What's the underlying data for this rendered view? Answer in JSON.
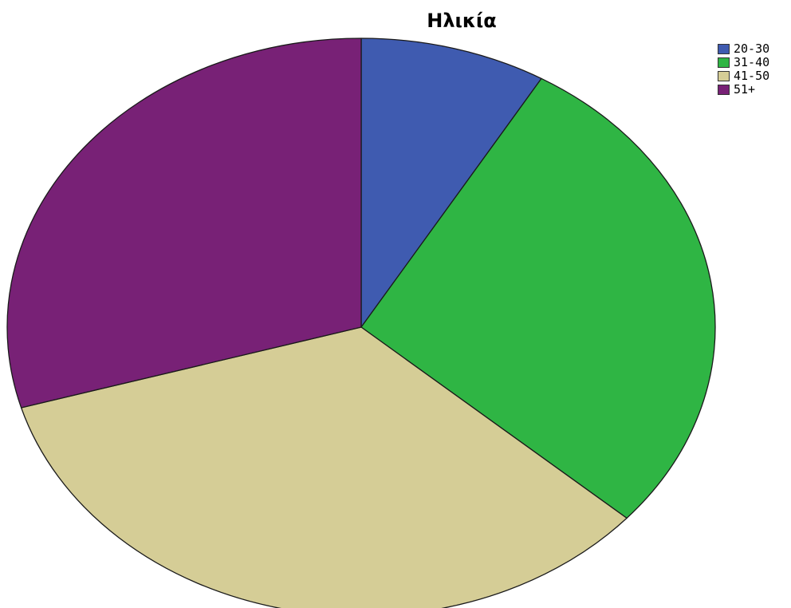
{
  "chart_data": {
    "type": "pie",
    "title": "Ηλικία",
    "legend_position": "top-right",
    "start_angle_deg": 0,
    "direction": "clockwise",
    "slices": [
      {
        "label": "20-30",
        "value": 8.5,
        "color": "#3f5bb0"
      },
      {
        "label": "31-40",
        "value": 28.0,
        "color": "#2fb544"
      },
      {
        "label": "41-50",
        "value": 34.0,
        "color": "#d5cd96"
      },
      {
        "label": "51+",
        "value": 29.5,
        "color": "#782176"
      }
    ]
  }
}
